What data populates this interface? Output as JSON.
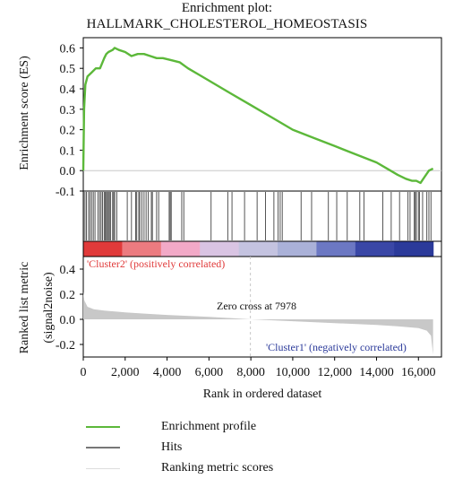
{
  "chart_data": {
    "type": "line",
    "title": "Enrichment plot:",
    "subtitle": "HALLMARK_CHOLESTEROL_HOMEOSTASIS",
    "ylabel_top": "Enrichment score (ES)",
    "ylabel_bottom_1": "Ranked list metric",
    "ylabel_bottom_2": "(signal2noise)",
    "xlabel": "Rank in ordered dataset",
    "x_ticks": [
      "0",
      "2,000",
      "4,000",
      "6,000",
      "8,000",
      "10,000",
      "12,000",
      "14,000",
      "16,000"
    ],
    "x_tick_values": [
      0,
      2000,
      4000,
      6000,
      8000,
      10000,
      12000,
      14000,
      16000
    ],
    "xlim": [
      0,
      17100
    ],
    "es_ylim": [
      -0.1,
      0.65
    ],
    "es_y_ticks": [
      "0.6",
      "0.5",
      "0.4",
      "0.3",
      "0.2",
      "0.1",
      "0.0",
      "-0.1"
    ],
    "es_y_tick_values": [
      0.6,
      0.5,
      0.4,
      0.3,
      0.2,
      0.1,
      0.0,
      -0.1
    ],
    "metric_ylim": [
      -0.3,
      0.5
    ],
    "metric_y_ticks": [
      "0.4",
      "0.2",
      "0.0",
      "-0.2"
    ],
    "metric_y_tick_values": [
      0.4,
      0.2,
      0.0,
      -0.2
    ],
    "enrichment_profile": {
      "name": "Enrichment profile",
      "color": "#5cb83a",
      "x": [
        0,
        40,
        100,
        200,
        400,
        600,
        800,
        1000,
        1100,
        1200,
        1400,
        1500,
        1700,
        2000,
        2300,
        2600,
        2900,
        3200,
        3500,
        3800,
        4200,
        4600,
        5000,
        5500,
        6000,
        7000,
        8000,
        9000,
        10000,
        11000,
        12000,
        13000,
        14000,
        14500,
        15000,
        15400,
        15700,
        15900,
        16100,
        16300,
        16500,
        16700
      ],
      "y": [
        0.0,
        0.3,
        0.42,
        0.46,
        0.48,
        0.5,
        0.5,
        0.55,
        0.57,
        0.58,
        0.59,
        0.6,
        0.59,
        0.58,
        0.56,
        0.57,
        0.57,
        0.56,
        0.55,
        0.55,
        0.54,
        0.53,
        0.5,
        0.47,
        0.44,
        0.38,
        0.32,
        0.26,
        0.2,
        0.16,
        0.12,
        0.08,
        0.04,
        0.01,
        -0.02,
        -0.04,
        -0.05,
        -0.05,
        -0.06,
        -0.03,
        0.0,
        0.01
      ]
    },
    "hits": {
      "name": "Hits",
      "color": "#555555",
      "positions": [
        20,
        80,
        150,
        250,
        320,
        400,
        480,
        560,
        700,
        780,
        850,
        920,
        1000,
        1050,
        1100,
        1150,
        1200,
        1250,
        1300,
        1400,
        1450,
        1500,
        1600,
        2100,
        2300,
        2500,
        2550,
        2650,
        2700,
        2800,
        2900,
        3000,
        3100,
        3250,
        3300,
        3500,
        3600,
        4100,
        4150,
        4200,
        4700,
        4800,
        6100,
        6900,
        7100,
        7700,
        8300,
        8700,
        9100,
        9300,
        9400,
        9500,
        10400,
        10900,
        11700,
        12100,
        12600,
        13200,
        13400,
        14300,
        14700,
        15100,
        15500,
        15600,
        15800,
        15850,
        15900,
        16000,
        16050,
        16200,
        16400,
        16500,
        16600
      ]
    },
    "ranking_metric": {
      "name": "Ranking metric scores",
      "color": "#c8c8c8",
      "x": [
        0,
        50,
        200,
        500,
        1000,
        2000,
        3000,
        4000,
        6000,
        8000,
        10000,
        12000,
        14000,
        15000,
        16000,
        16400,
        16600,
        16700
      ],
      "y": [
        0.22,
        0.15,
        0.1,
        0.08,
        0.07,
        0.055,
        0.045,
        0.035,
        0.02,
        0.0,
        -0.015,
        -0.03,
        -0.045,
        -0.055,
        -0.07,
        -0.09,
        -0.13,
        -0.28
      ]
    },
    "zero_cross_x": 7978,
    "zero_cross_label": "Zero cross at 7978",
    "cluster_left_label": "'Cluster2' (positively correlated)",
    "cluster_right_label": "'Cluster1' (negatively correlated)",
    "cluster_left_color": "#e03a3a",
    "cluster_right_color": "#2b3a9a",
    "legend": [
      "Enrichment profile",
      "Hits",
      "Ranking metric scores"
    ],
    "legend_placement": "bottom-left"
  }
}
